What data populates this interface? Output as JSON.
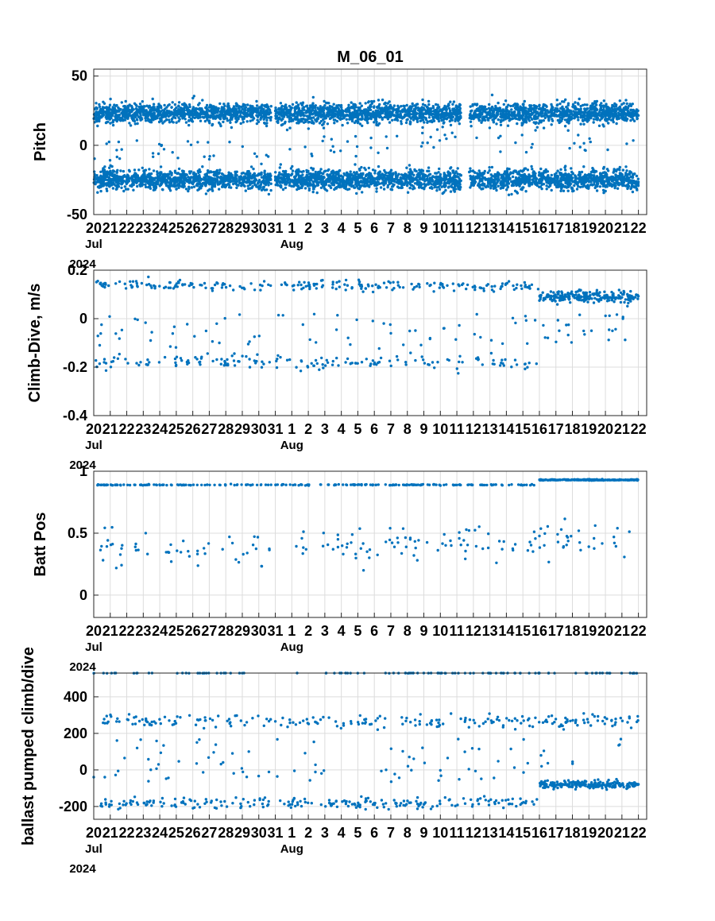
{
  "figure": {
    "title": "M_06_01"
  },
  "chart_data": [
    {
      "type": "scatter",
      "title": "M_06_01",
      "ylabel": "Pitch",
      "ylim": [
        -50,
        55
      ],
      "yticks": [
        -50,
        0,
        50
      ],
      "x_tick_labels": [
        "20",
        "21",
        "22",
        "23",
        "24",
        "25",
        "26",
        "27",
        "28",
        "29",
        "30",
        "31",
        "1",
        "2",
        "3",
        "4",
        "5",
        "6",
        "7",
        "8",
        "9",
        "10",
        "11",
        "12",
        "13",
        "14",
        "15",
        "16",
        "17",
        "18",
        "19",
        "20",
        "21",
        "22"
      ],
      "x_sub_labels": [
        {
          "label": "Jul",
          "at": "20"
        },
        {
          "label": "Aug",
          "at": "1"
        }
      ],
      "x_year_label": "2024",
      "x_range": [
        "2024-07-20",
        "2024-08-22 12:00"
      ],
      "gaps": [
        [
          "2024-07-30 18:00",
          "2024-07-31 00:00"
        ],
        [
          "2024-08-11 06:00",
          "2024-08-11 18:00"
        ]
      ],
      "grid": true,
      "series": [
        {
          "segments": [
            [
              "2024-07-20",
              "2024-08-22"
            ]
          ],
          "band_center": [
            23,
            23
          ],
          "band_spread": 7,
          "density": "very high"
        },
        {
          "segments": [
            [
              "2024-07-20",
              "2024-08-22"
            ]
          ],
          "band_center": [
            -25,
            -25
          ],
          "band_spread": 7,
          "density": "very high"
        },
        {
          "segments": [
            [
              "2024-07-20",
              "2024-08-22"
            ]
          ],
          "band_center": [
            -5,
            5
          ],
          "band_spread": 8,
          "density": "low"
        }
      ]
    },
    {
      "type": "scatter",
      "ylabel": "Climb-Dive, m/s",
      "ylim": [
        -0.4,
        0.2
      ],
      "yticks": [
        -0.4,
        -0.2,
        0,
        0.2
      ],
      "x_tick_labels": [
        "20",
        "21",
        "22",
        "23",
        "24",
        "25",
        "26",
        "27",
        "28",
        "29",
        "30",
        "31",
        "1",
        "2",
        "3",
        "4",
        "5",
        "6",
        "7",
        "8",
        "9",
        "10",
        "11",
        "12",
        "13",
        "14",
        "15",
        "16",
        "17",
        "18",
        "19",
        "20",
        "21",
        "22"
      ],
      "x_sub_labels": [
        {
          "label": "Jul",
          "at": "20"
        },
        {
          "label": "Aug",
          "at": "1"
        }
      ],
      "x_year_label": "2024",
      "x_range": [
        "2024-07-20",
        "2024-08-22 12:00"
      ],
      "gaps": [
        [
          "2024-07-30 18:00",
          "2024-07-31 00:00"
        ]
      ],
      "grid": true,
      "series": [
        {
          "segments": [
            [
              "2024-07-20",
              "2024-08-16"
            ]
          ],
          "band_center": [
            0.14,
            0.13
          ],
          "band_spread": 0.02,
          "density": "high"
        },
        {
          "segments": [
            [
              "2024-08-16",
              "2024-08-22"
            ]
          ],
          "band_center": [
            0.09,
            0.09
          ],
          "band_spread": 0.025,
          "density": "high"
        },
        {
          "segments": [
            [
              "2024-07-20",
              "2024-08-16"
            ]
          ],
          "band_center": [
            -0.18,
            -0.18
          ],
          "band_spread": 0.03,
          "density": "medium"
        },
        {
          "segments": [
            [
              "2024-07-20",
              "2024-08-22"
            ]
          ],
          "band_center": [
            -0.05,
            -0.05
          ],
          "band_spread": 0.07,
          "density": "low"
        }
      ]
    },
    {
      "type": "scatter",
      "ylabel": "Batt Pos",
      "ylim": [
        -0.18,
        1.0
      ],
      "yticks": [
        0,
        0.5,
        1
      ],
      "x_tick_labels": [
        "20",
        "21",
        "22",
        "23",
        "24",
        "25",
        "26",
        "27",
        "28",
        "29",
        "30",
        "31",
        "1",
        "2",
        "3",
        "4",
        "5",
        "6",
        "7",
        "8",
        "9",
        "10",
        "11",
        "12",
        "13",
        "14",
        "15",
        "16",
        "17",
        "18",
        "19",
        "20",
        "21",
        "22"
      ],
      "x_sub_labels": [
        {
          "label": "Jul",
          "at": "20"
        },
        {
          "label": "Aug",
          "at": "1"
        }
      ],
      "x_year_label": "2024",
      "x_range": [
        "2024-07-20",
        "2024-08-22 12:00"
      ],
      "gaps": [
        [
          "2024-07-30 18:00",
          "2024-07-31 00:00"
        ]
      ],
      "grid": true,
      "series": [
        {
          "segments": [
            [
              "2024-07-20",
              "2024-08-16"
            ]
          ],
          "band_center": [
            0.89,
            0.89
          ],
          "band_spread": 0.004,
          "density": "high"
        },
        {
          "segments": [
            [
              "2024-08-16",
              "2024-08-22"
            ]
          ],
          "band_center": [
            0.93,
            0.93
          ],
          "band_spread": 0.004,
          "density": "high"
        },
        {
          "segments": [
            [
              "2024-07-20",
              "2024-08-22"
            ]
          ],
          "band_center": [
            0.35,
            0.45
          ],
          "band_spread": 0.14,
          "density": "medium"
        }
      ]
    },
    {
      "type": "scatter",
      "ylabel": "ballast pumped climb/dive",
      "ylim": [
        -270,
        530
      ],
      "yticks": [
        -200,
        0,
        200,
        400
      ],
      "x_tick_labels": [
        "20",
        "21",
        "22",
        "23",
        "24",
        "25",
        "26",
        "27",
        "28",
        "29",
        "30",
        "31",
        "1",
        "2",
        "3",
        "4",
        "5",
        "6",
        "7",
        "8",
        "9",
        "10",
        "11",
        "12",
        "13",
        "14",
        "15",
        "16",
        "17",
        "18",
        "19",
        "20",
        "21",
        "22"
      ],
      "x_sub_labels": [
        {
          "label": "Jul",
          "at": "20"
        },
        {
          "label": "Aug",
          "at": "1"
        }
      ],
      "x_year_label": "2024",
      "x_range": [
        "2024-07-20",
        "2024-08-22 12:00"
      ],
      "gaps": [
        [
          "2024-07-30 18:00",
          "2024-07-31 00:00"
        ]
      ],
      "grid": true,
      "series": [
        {
          "segments": [
            [
              "2024-07-20",
              "2024-08-22"
            ]
          ],
          "band_center": [
            530,
            530
          ],
          "band_spread": 1,
          "density": "high"
        },
        {
          "segments": [
            [
              "2024-07-20",
              "2024-08-22"
            ]
          ],
          "band_center": [
            270,
            260
          ],
          "band_spread": 35,
          "density": "high"
        },
        {
          "segments": [
            [
              "2024-07-20",
              "2024-08-16"
            ]
          ],
          "band_center": [
            -180,
            -180
          ],
          "band_spread": 30,
          "density": "high"
        },
        {
          "segments": [
            [
              "2024-08-16",
              "2024-08-22"
            ]
          ],
          "band_center": [
            -80,
            -80
          ],
          "band_spread": 20,
          "density": "high"
        },
        {
          "segments": [
            [
              "2024-07-20",
              "2024-08-22"
            ]
          ],
          "band_center": [
            50,
            50
          ],
          "band_spread": 120,
          "density": "low"
        }
      ]
    }
  ]
}
